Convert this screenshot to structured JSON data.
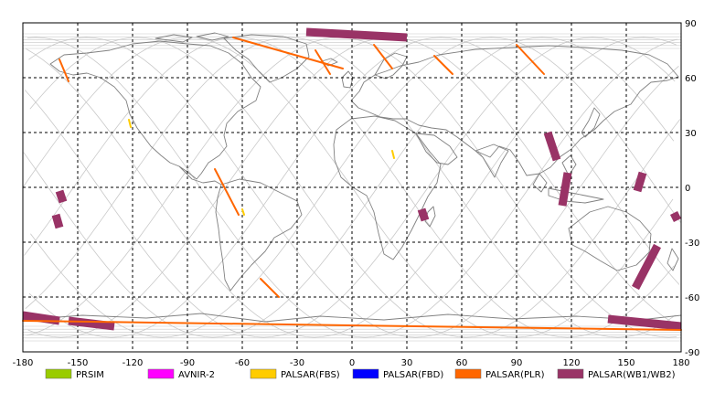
{
  "map": {
    "lon_ticks": [
      "-180",
      "-150",
      "-120",
      "-90",
      "-60",
      "-30",
      "0",
      "30",
      "60",
      "90",
      "120",
      "150",
      "180"
    ],
    "lat_ticks": [
      "90",
      "60",
      "30",
      "0",
      "-30",
      "-60",
      "-90"
    ],
    "lon_range": [
      -180,
      180
    ],
    "lat_range": [
      -90,
      90
    ],
    "grid": "dashed",
    "coastline_color": "#808080",
    "orbit_track_color": "#c8c8c8"
  },
  "legend": [
    {
      "label": "PRSIM",
      "color": "#99cc00"
    },
    {
      "label": "AVNIR-2",
      "color": "#ff00ff"
    },
    {
      "label": "PALSAR(FBS)",
      "color": "#ffcc00"
    },
    {
      "label": "PALSAR(FBD)",
      "color": "#0000ff"
    },
    {
      "label": "PALSAR(PLR)",
      "color": "#ff6600"
    },
    {
      "label": "PALSAR(WB1/WB2)",
      "color": "#993366"
    }
  ],
  "chart_data": {
    "type": "map",
    "observations": [
      {
        "mode": "PALSAR(WB1/WB2)",
        "lon": [
          -25,
          30
        ],
        "lat": [
          85,
          82
        ]
      },
      {
        "mode": "PALSAR(WB1/WB2)",
        "lon": [
          -160,
          -158
        ],
        "lat": [
          -2,
          -8
        ]
      },
      {
        "mode": "PALSAR(WB1/WB2)",
        "lon": [
          -162,
          -160
        ],
        "lat": [
          -15,
          -22
        ]
      },
      {
        "mode": "PALSAR(WB1/WB2)",
        "lon": [
          38,
          40
        ],
        "lat": [
          -12,
          -18
        ]
      },
      {
        "mode": "PALSAR(WB1/WB2)",
        "lon": [
          107,
          112
        ],
        "lat": [
          30,
          15
        ]
      },
      {
        "mode": "PALSAR(WB1/WB2)",
        "lon": [
          118,
          115
        ],
        "lat": [
          8,
          -10
        ]
      },
      {
        "mode": "PALSAR(WB1/WB2)",
        "lon": [
          159,
          156
        ],
        "lat": [
          8,
          -2
        ]
      },
      {
        "mode": "PALSAR(WB1/WB2)",
        "lon": [
          176,
          178
        ],
        "lat": [
          -14,
          -18
        ]
      },
      {
        "mode": "PALSAR(WB1/WB2)",
        "lon": [
          167,
          155
        ],
        "lat": [
          -32,
          -55
        ]
      },
      {
        "mode": "PALSAR(WB1/WB2)",
        "lon": [
          -180,
          -160
        ],
        "lat": [
          -70,
          -73
        ]
      },
      {
        "mode": "PALSAR(WB1/WB2)",
        "lon": [
          -155,
          -130
        ],
        "lat": [
          -73,
          -76
        ]
      },
      {
        "mode": "PALSAR(WB1/WB2)",
        "lon": [
          140,
          180
        ],
        "lat": [
          -72,
          -76
        ]
      },
      {
        "mode": "PALSAR(PLR)",
        "lon": [
          -65,
          -5
        ],
        "lat": [
          82,
          65
        ]
      },
      {
        "mode": "PALSAR(PLR)",
        "lon": [
          -20,
          -12
        ],
        "lat": [
          75,
          62
        ]
      },
      {
        "mode": "PALSAR(PLR)",
        "lon": [
          12,
          22
        ],
        "lat": [
          78,
          65
        ]
      },
      {
        "mode": "PALSAR(PLR)",
        "lon": [
          45,
          55
        ],
        "lat": [
          72,
          62
        ]
      },
      {
        "mode": "PALSAR(PLR)",
        "lon": [
          90,
          105
        ],
        "lat": [
          78,
          62
        ]
      },
      {
        "mode": "PALSAR(PLR)",
        "lon": [
          -160,
          -155
        ],
        "lat": [
          70,
          58
        ]
      },
      {
        "mode": "PALSAR(PLR)",
        "lon": [
          -75,
          -62
        ],
        "lat": [
          10,
          -15
        ]
      },
      {
        "mode": "PALSAR(PLR)",
        "lon": [
          -50,
          -40
        ],
        "lat": [
          -50,
          -60
        ]
      },
      {
        "mode": "PALSAR(PLR)",
        "lon": [
          -180,
          180
        ],
        "lat": [
          -73,
          -78
        ]
      },
      {
        "mode": "PALSAR(FBS)",
        "lon": [
          -122,
          -121
        ],
        "lat": [
          37,
          33
        ]
      },
      {
        "mode": "PALSAR(FBS)",
        "lon": [
          22,
          23
        ],
        "lat": [
          20,
          16
        ]
      },
      {
        "mode": "PALSAR(FBS)",
        "lon": [
          -60,
          -59
        ],
        "lat": [
          -12,
          -15
        ]
      }
    ]
  }
}
